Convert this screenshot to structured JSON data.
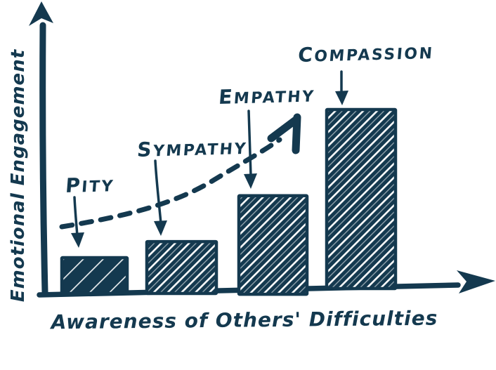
{
  "chart_data": {
    "type": "bar",
    "title": "",
    "categories": [
      "Pity",
      "Sympathy",
      "Empathy",
      "Compassion"
    ],
    "values": [
      20,
      29,
      55,
      100
    ],
    "value_note": "no numeric axis shown; values are relative bar heights (% of tallest bar)",
    "xlabel": "Awareness of Others' Difficulties",
    "ylabel": "Emotional Engagement",
    "ylim": [
      0,
      110
    ],
    "grid": false,
    "legend": false,
    "style": "hand-drawn sketch with diagonal-hatched bars and open arrow axes",
    "annotations": [
      "dashed curved trend arrow rising left-to-right, ending in a bold arrowhead above the Empathy bar",
      "thin down-arrow from each category label to the top of its bar"
    ],
    "colors": {
      "ink": "#14394F",
      "background": "#FFFFFF"
    }
  }
}
